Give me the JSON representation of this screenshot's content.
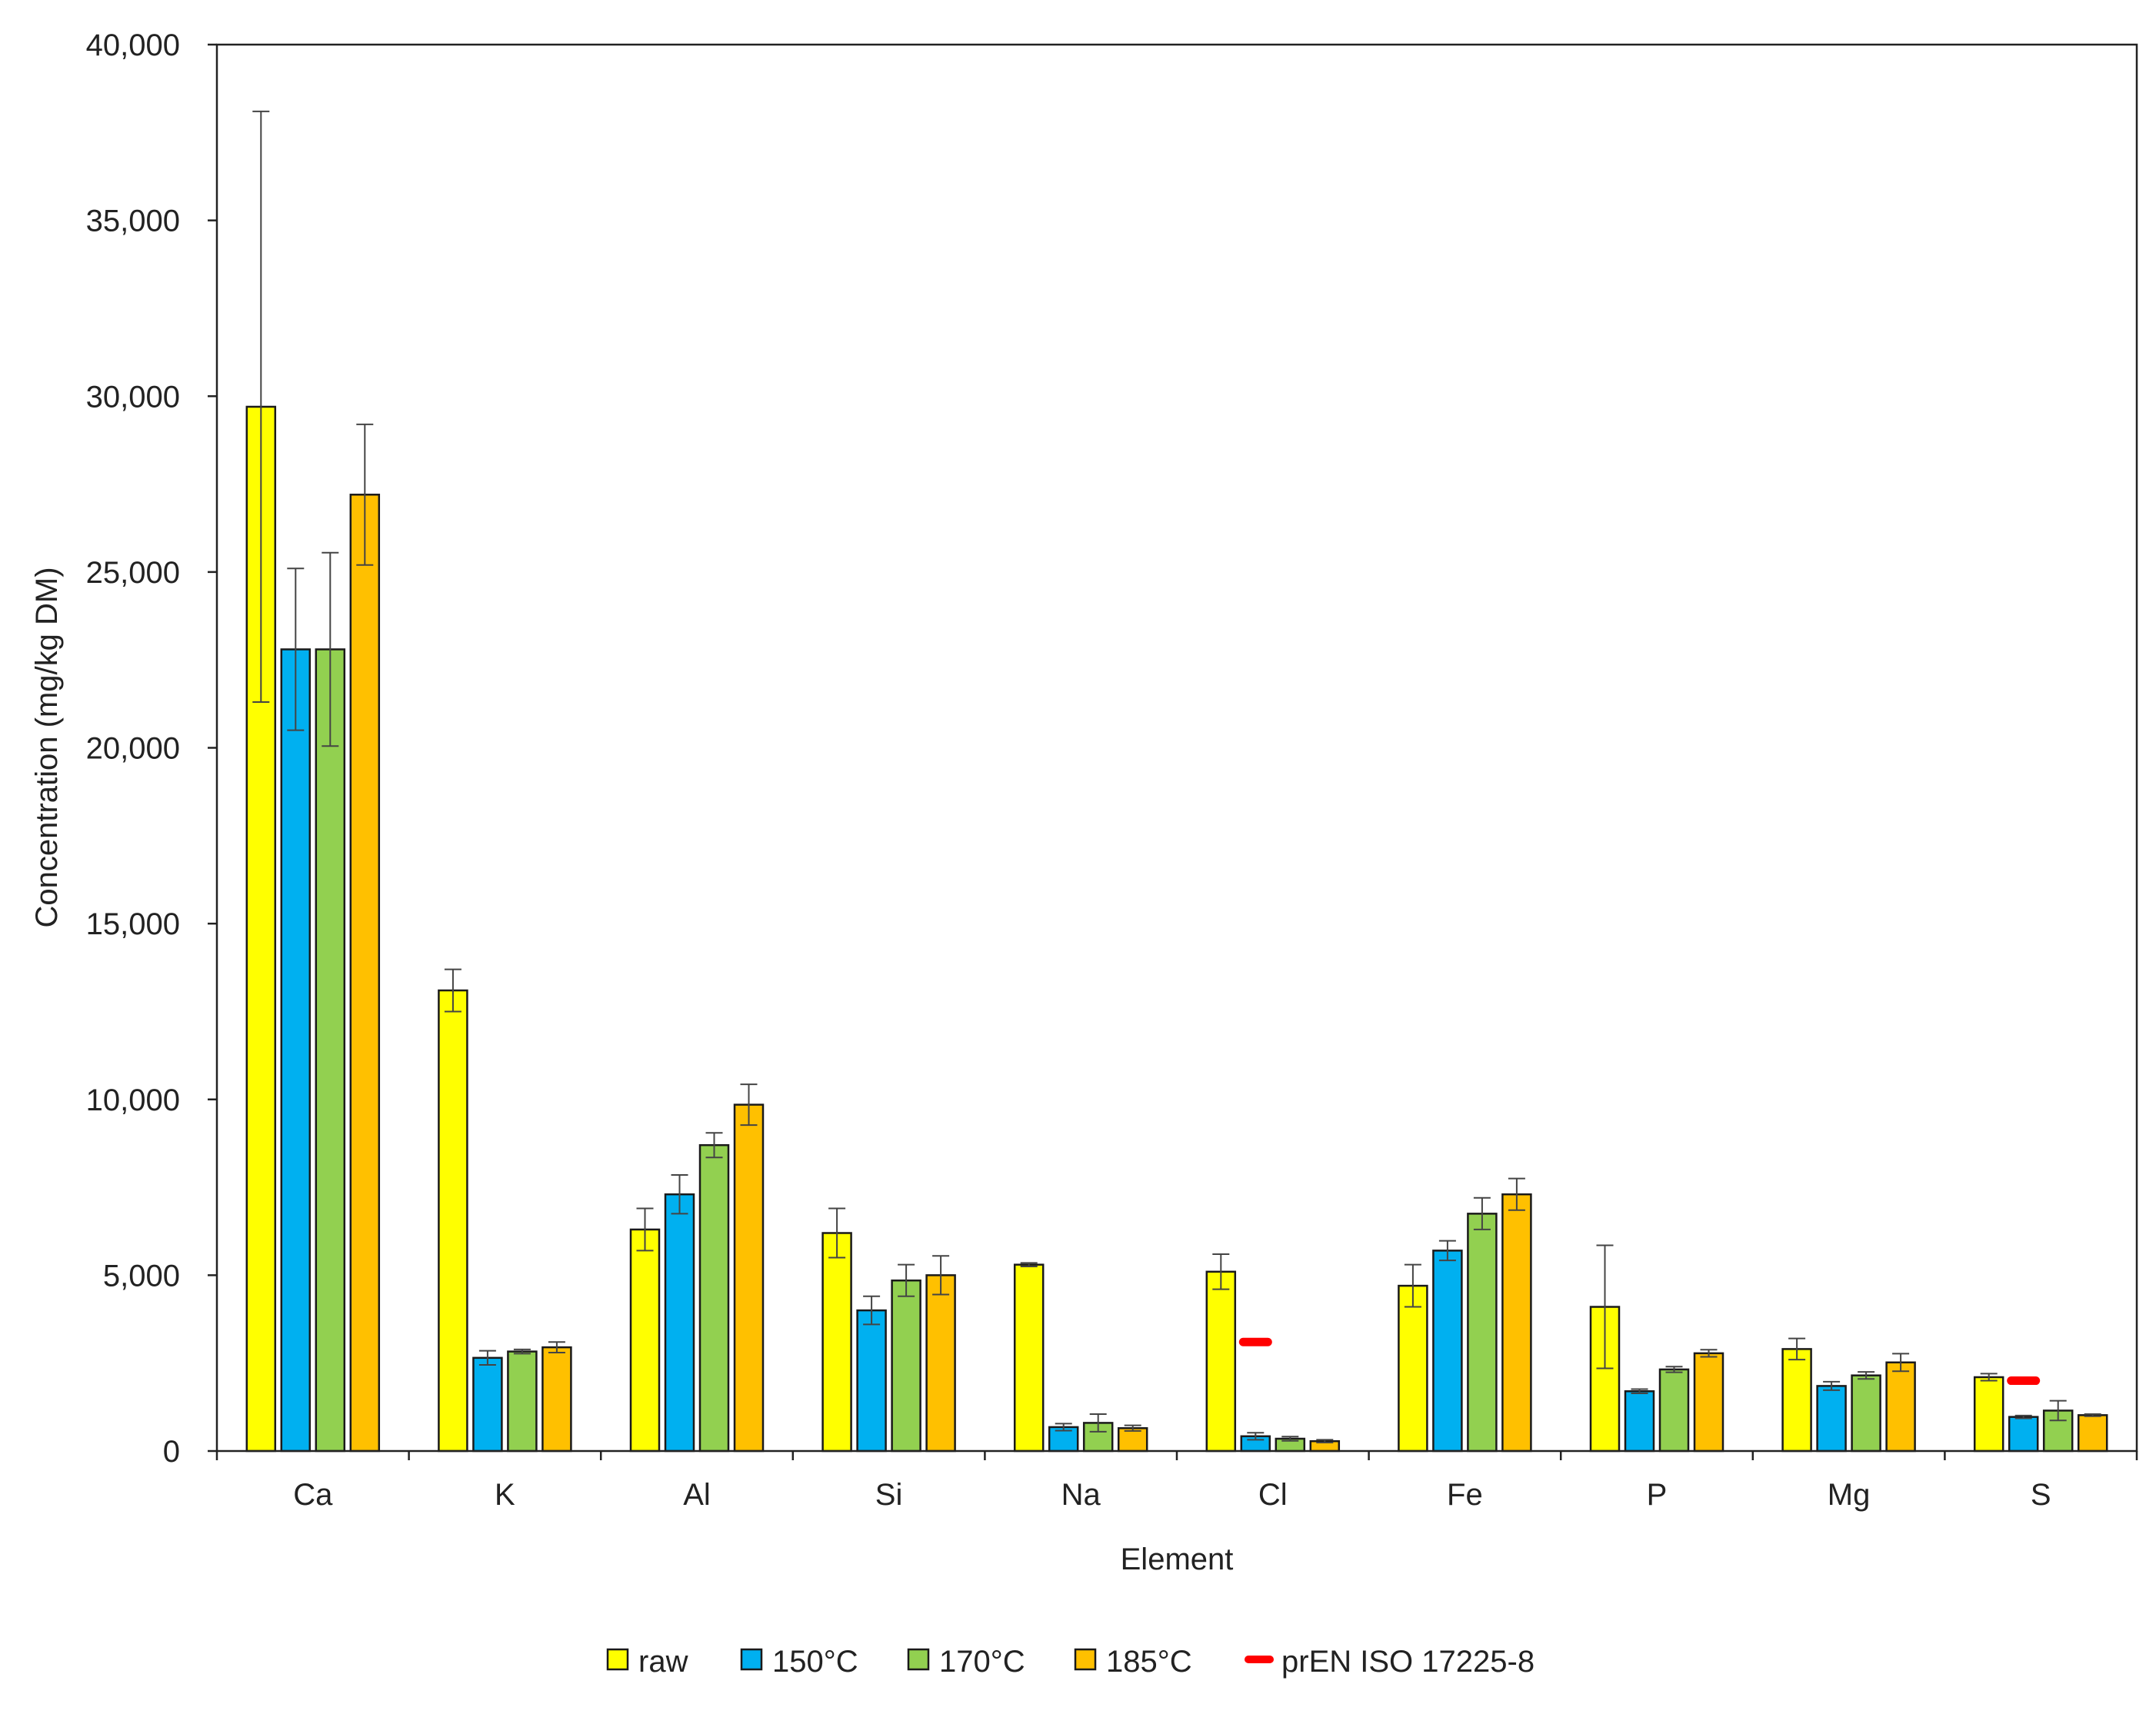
{
  "chart_data": {
    "type": "bar",
    "title": "",
    "xlabel": "Element",
    "ylabel": "Concentration (mg/kg DM)",
    "ylim": [
      0,
      40000
    ],
    "yticks": [
      0,
      5000,
      10000,
      15000,
      20000,
      25000,
      30000,
      35000,
      40000
    ],
    "ytick_labels": [
      "0",
      "5,000",
      "10,000",
      "15,000",
      "20,000",
      "25,000",
      "30,000",
      "35,000",
      "40,000"
    ],
    "categories": [
      "Ca",
      "K",
      "Al",
      "Si",
      "Na",
      "Cl",
      "Fe",
      "P",
      "Mg",
      "S"
    ],
    "series": [
      {
        "name": "raw",
        "color": "#ffff00",
        "values": [
          29700,
          13100,
          6300,
          6200,
          5300,
          5100,
          4700,
          4100,
          2900,
          2100
        ],
        "errors": [
          8400,
          600,
          600,
          700,
          50,
          500,
          600,
          1750,
          300,
          100
        ]
      },
      {
        "name": "150°C",
        "color": "#00b0f0",
        "values": [
          22800,
          2650,
          7300,
          4000,
          680,
          420,
          5700,
          1700,
          1850,
          970
        ],
        "errors": [
          2300,
          200,
          550,
          400,
          100,
          100,
          280,
          60,
          120,
          40
        ]
      },
      {
        "name": "170°C",
        "color": "#92d050",
        "values": [
          22800,
          2830,
          8700,
          4850,
          800,
          350,
          6750,
          2320,
          2150,
          1150
        ],
        "errors": [
          2750,
          60,
          350,
          450,
          250,
          60,
          450,
          80,
          100,
          280
        ]
      },
      {
        "name": "185°C",
        "color": "#ffc000",
        "values": [
          27200,
          2950,
          9850,
          5000,
          650,
          280,
          7300,
          2780,
          2520,
          1020
        ],
        "errors": [
          2000,
          150,
          580,
          550,
          80,
          40,
          450,
          100,
          250,
          30
        ]
      }
    ],
    "reference": {
      "name": "prEN ISO 17225-8",
      "color": "#ff0000",
      "points": [
        {
          "category": "Cl",
          "value": 3100
        },
        {
          "category": "S",
          "value": 2000
        }
      ]
    },
    "legend_position": "bottom-center",
    "grid": false
  }
}
